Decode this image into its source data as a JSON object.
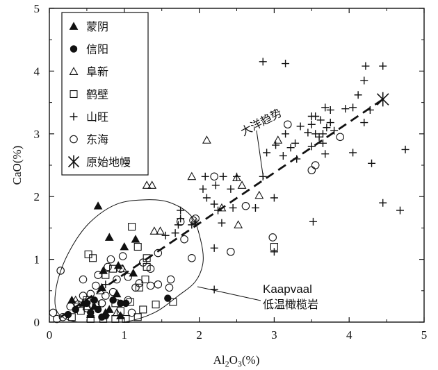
{
  "chart_data": {
    "type": "scatter",
    "title": "",
    "xlabel": {
      "base": "Al",
      "sub1": "2",
      "mid": "O",
      "sub2": "3",
      "tail": "(%)"
    },
    "ylabel": "CaO(%)",
    "xlim": [
      0,
      5
    ],
    "ylim": [
      0,
      5
    ],
    "xticks": [
      "0",
      "1",
      "2",
      "3",
      "4",
      "5"
    ],
    "yticks": [
      "0",
      "1",
      "2",
      "3",
      "4",
      "5"
    ],
    "legend_position": "top-left",
    "series": [
      {
        "name": "蒙阴",
        "marker": "triangle-filled",
        "points": [
          [
            0.65,
            1.85
          ],
          [
            0.8,
            1.35
          ],
          [
            1.0,
            1.2
          ],
          [
            1.15,
            1.32
          ],
          [
            0.72,
            0.82
          ],
          [
            0.92,
            0.9
          ],
          [
            1.12,
            0.78
          ],
          [
            0.7,
            0.55
          ],
          [
            0.9,
            0.45
          ],
          [
            0.45,
            0.3
          ],
          [
            0.6,
            0.25
          ],
          [
            0.8,
            0.2
          ],
          [
            0.55,
            0.12
          ],
          [
            0.75,
            0.15
          ],
          [
            0.95,
            0.1
          ],
          [
            0.3,
            0.35
          ]
        ]
      },
      {
        "name": "信阳",
        "marker": "circle-filled",
        "points": [
          [
            0.25,
            0.12
          ],
          [
            0.35,
            0.2
          ],
          [
            0.5,
            0.3
          ],
          [
            0.55,
            0.15
          ],
          [
            0.65,
            0.2
          ],
          [
            0.75,
            0.1
          ],
          [
            0.85,
            0.35
          ],
          [
            0.95,
            0.3
          ],
          [
            1.02,
            0.3
          ],
          [
            1.58,
            0.38
          ],
          [
            0.7,
            0.08
          ],
          [
            0.6,
            0.35
          ]
        ]
      },
      {
        "name": "阜新",
        "marker": "triangle-open",
        "points": [
          [
            1.3,
            2.18
          ],
          [
            1.37,
            2.18
          ],
          [
            1.4,
            1.45
          ],
          [
            1.48,
            1.45
          ],
          [
            1.9,
            2.32
          ],
          [
            2.1,
            2.9
          ],
          [
            2.5,
            2.3
          ],
          [
            2.57,
            2.18
          ],
          [
            2.3,
            1.82
          ],
          [
            2.52,
            1.55
          ],
          [
            2.8,
            2.02
          ],
          [
            3.05,
            2.9
          ],
          [
            0.98,
            0.85
          ],
          [
            0.68,
            0.5
          ],
          [
            0.5,
            0.25
          ],
          [
            0.9,
            0.15
          ],
          [
            0.35,
            0.35
          ]
        ]
      },
      {
        "name": "鹤壁",
        "marker": "square-open",
        "points": [
          [
            1.1,
            1.52
          ],
          [
            1.18,
            1.2
          ],
          [
            0.52,
            1.08
          ],
          [
            0.58,
            1.02
          ],
          [
            1.3,
            1.02
          ],
          [
            1.3,
            0.88
          ],
          [
            0.75,
            0.75
          ],
          [
            1.28,
            0.68
          ],
          [
            1.2,
            0.55
          ],
          [
            0.5,
            0.35
          ],
          [
            0.62,
            0.28
          ],
          [
            0.88,
            0.3
          ],
          [
            0.95,
            0.18
          ],
          [
            1.08,
            0.32
          ],
          [
            1.25,
            0.2
          ],
          [
            1.42,
            0.28
          ],
          [
            0.42,
            0.18
          ],
          [
            0.55,
            0.05
          ],
          [
            0.72,
            0.05
          ],
          [
            0.88,
            0.05
          ],
          [
            1.02,
            0.05
          ],
          [
            1.18,
            0.08
          ],
          [
            0.3,
            0.08
          ],
          [
            1.65,
            0.32
          ],
          [
            3.0,
            1.2
          ],
          [
            0.85,
            0.85
          ]
        ]
      },
      {
        "name": "山旺",
        "marker": "plus",
        "points": [
          [
            2.85,
            4.15
          ],
          [
            3.15,
            4.12
          ],
          [
            4.22,
            4.08
          ],
          [
            4.45,
            4.08
          ],
          [
            4.2,
            3.85
          ],
          [
            4.12,
            3.62
          ],
          [
            3.75,
            3.38
          ],
          [
            3.68,
            3.42
          ],
          [
            3.95,
            3.4
          ],
          [
            4.05,
            3.42
          ],
          [
            4.28,
            3.38
          ],
          [
            3.5,
            3.28
          ],
          [
            3.55,
            3.28
          ],
          [
            3.5,
            3.15
          ],
          [
            3.62,
            3.22
          ],
          [
            3.7,
            3.1
          ],
          [
            3.75,
            3.18
          ],
          [
            3.8,
            3.05
          ],
          [
            4.2,
            3.18
          ],
          [
            3.15,
            3.0
          ],
          [
            3.35,
            3.12
          ],
          [
            3.45,
            3.02
          ],
          [
            3.55,
            3.0
          ],
          [
            3.6,
            2.95
          ],
          [
            3.65,
            2.85
          ],
          [
            3.02,
            2.82
          ],
          [
            3.22,
            2.78
          ],
          [
            3.28,
            2.85
          ],
          [
            3.5,
            2.8
          ],
          [
            3.65,
            3.0
          ],
          [
            2.9,
            2.7
          ],
          [
            3.12,
            2.65
          ],
          [
            3.3,
            2.6
          ],
          [
            3.68,
            2.68
          ],
          [
            4.05,
            2.7
          ],
          [
            4.3,
            2.53
          ],
          [
            4.75,
            2.75
          ],
          [
            2.08,
            2.32
          ],
          [
            2.32,
            2.32
          ],
          [
            2.5,
            2.32
          ],
          [
            2.05,
            2.12
          ],
          [
            2.22,
            2.18
          ],
          [
            2.42,
            2.12
          ],
          [
            2.85,
            2.32
          ],
          [
            2.1,
            1.98
          ],
          [
            2.2,
            1.88
          ],
          [
            2.45,
            1.82
          ],
          [
            2.75,
            1.82
          ],
          [
            3.0,
            1.98
          ],
          [
            2.25,
            1.78
          ],
          [
            1.75,
            1.78
          ],
          [
            1.75,
            1.65
          ],
          [
            1.9,
            1.55
          ],
          [
            1.95,
            1.58
          ],
          [
            1.72,
            1.55
          ],
          [
            1.68,
            1.42
          ],
          [
            1.55,
            1.38
          ],
          [
            2.3,
            1.58
          ],
          [
            2.2,
            1.18
          ],
          [
            3.0,
            1.12
          ],
          [
            3.52,
            1.6
          ],
          [
            4.45,
            1.9
          ],
          [
            4.68,
            1.78
          ],
          [
            2.2,
            0.52
          ],
          [
            0.75,
            0.6
          ]
        ]
      },
      {
        "name": "东海",
        "marker": "circle-open",
        "points": [
          [
            3.18,
            3.15
          ],
          [
            3.88,
            2.95
          ],
          [
            3.55,
            2.5
          ],
          [
            3.5,
            2.42
          ],
          [
            2.2,
            2.32
          ],
          [
            2.62,
            1.85
          ],
          [
            1.75,
            1.6
          ],
          [
            1.8,
            1.32
          ],
          [
            1.92,
            1.62
          ],
          [
            1.95,
            1.65
          ],
          [
            2.42,
            1.12
          ],
          [
            1.9,
            1.02
          ],
          [
            1.45,
            1.1
          ],
          [
            2.98,
            1.35
          ],
          [
            1.62,
            0.68
          ],
          [
            1.45,
            0.6
          ],
          [
            1.35,
            0.58
          ],
          [
            1.2,
            0.62
          ],
          [
            1.05,
            0.72
          ],
          [
            0.9,
            0.68
          ],
          [
            0.95,
            0.85
          ],
          [
            0.78,
            0.88
          ],
          [
            0.82,
            1.0
          ],
          [
            0.98,
            1.05
          ],
          [
            1.25,
            0.95
          ],
          [
            0.65,
            0.75
          ],
          [
            0.45,
            0.68
          ],
          [
            0.62,
            0.58
          ],
          [
            0.75,
            0.42
          ],
          [
            0.85,
            0.48
          ],
          [
            1.05,
            0.35
          ],
          [
            0.55,
            0.45
          ],
          [
            0.45,
            0.42
          ],
          [
            0.38,
            0.28
          ],
          [
            0.28,
            0.25
          ],
          [
            0.18,
            0.08
          ],
          [
            0.1,
            0.05
          ],
          [
            0.05,
            0.15
          ],
          [
            0.15,
            0.82
          ],
          [
            0.5,
            0.22
          ],
          [
            0.7,
            0.3
          ],
          [
            1.1,
            0.15
          ],
          [
            1.15,
            0.55
          ],
          [
            1.35,
            0.85
          ],
          [
            1.6,
            0.55
          ]
        ]
      },
      {
        "name": "原始地幔",
        "marker": "asterisk",
        "points": [
          [
            4.45,
            3.55
          ]
        ]
      }
    ],
    "trend_label": "大洋趋势",
    "field_label_line1": "Kaapvaal",
    "field_label_line2": "低温橄榄岩"
  }
}
